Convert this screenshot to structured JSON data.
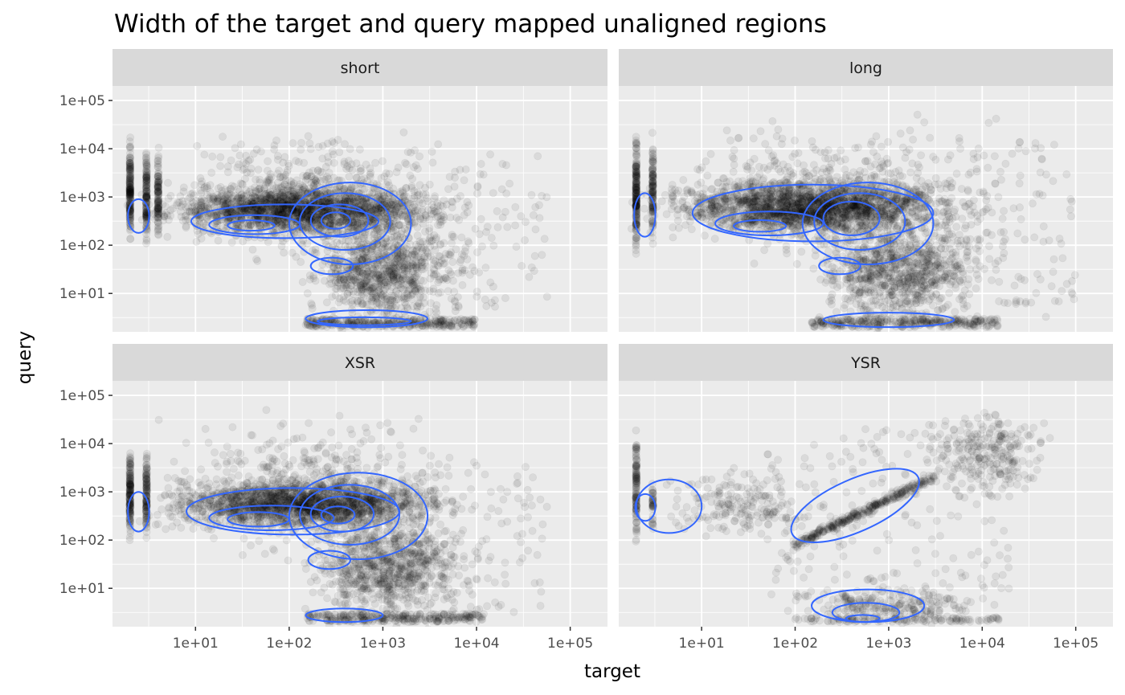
{
  "chart_data": {
    "type": "scatter",
    "title": "Width of the target and query mapped unaligned regions",
    "xlabel": "target",
    "ylabel": "query",
    "x_scale": "log10",
    "y_scale": "log10",
    "xlim": [
      1.3,
      250000
    ],
    "ylim": [
      1.6,
      200000
    ],
    "x_ticks": [
      10,
      100,
      1000,
      10000,
      100000
    ],
    "x_tick_labels": [
      "1e+01",
      "1e+02",
      "1e+03",
      "1e+04",
      "1e+05"
    ],
    "y_ticks": [
      10,
      100,
      1000,
      10000,
      100000
    ],
    "y_tick_labels": [
      "1e+01",
      "1e+02",
      "1e+03",
      "1e+04",
      "1e+05"
    ],
    "grid": true,
    "point_color": "#000000",
    "point_alpha": 0.07,
    "density_contour_color": "#3366FF",
    "panel_background": "#EBEBEB",
    "strip_background": "#D9D9D9",
    "layout": {
      "rows": 2,
      "cols": 2
    },
    "panels": [
      {
        "label": "short",
        "point_clusters": [
          {
            "x": [
              2,
              2
            ],
            "y": [
              80,
              20000
            ],
            "n": 180,
            "kind": "column"
          },
          {
            "x": [
              3,
              3
            ],
            "y": [
              80,
              15000
            ],
            "n": 140,
            "kind": "column"
          },
          {
            "x": [
              4,
              4
            ],
            "y": [
              80,
              12000
            ],
            "n": 110,
            "kind": "column"
          },
          {
            "x": [
              3,
              6000
            ],
            "y": [
              150,
              2000
            ],
            "n": 1800,
            "kind": "cloud"
          },
          {
            "x": [
              5,
              8000
            ],
            "y": [
              40,
              30000
            ],
            "n": 500,
            "kind": "cloud"
          },
          {
            "x": [
              150,
              8000
            ],
            "y": [
              2,
              400
            ],
            "n": 900,
            "kind": "cloud"
          },
          {
            "x": [
              150,
              10000
            ],
            "y": [
              2,
              3
            ],
            "n": 300,
            "kind": "row"
          },
          {
            "x": [
              5000,
              60000
            ],
            "y": [
              5,
              8000
            ],
            "n": 80,
            "kind": "sparse"
          }
        ],
        "contours": [
          {
            "center": [
              2.5,
              380
            ],
            "rx": [
              1.9,
              3.2
            ],
            "ry": [
              180,
              900
            ]
          },
          {
            "center": [
              30,
              250
            ],
            "rx": [
              9,
              900
            ],
            "ry": [
              140,
              700
            ]
          },
          {
            "center": [
              35,
              250
            ],
            "rx": [
              14,
              130
            ],
            "ry": [
              170,
              420
            ]
          },
          {
            "center": [
              38,
              250
            ],
            "rx": [
              22,
              70
            ],
            "ry": [
              200,
              330
            ]
          },
          {
            "center": [
              300,
              300
            ],
            "rx": [
              100,
              2000
            ],
            "ry": [
              40,
              2000
            ]
          },
          {
            "center": [
              300,
              320
            ],
            "rx": [
              130,
              1200
            ],
            "ry": [
              80,
              1200
            ]
          },
          {
            "center": [
              300,
              320
            ],
            "rx": [
              170,
              700
            ],
            "ry": [
              150,
              700
            ]
          },
          {
            "center": [
              300,
              320
            ],
            "rx": [
              220,
              450
            ],
            "ry": [
              220,
              480
            ]
          },
          {
            "center": [
              270,
              35
            ],
            "rx": [
              170,
              480
            ],
            "ry": [
              25,
              55
            ]
          },
          {
            "center": [
              400,
              2.8
            ],
            "rx": [
              150,
              3000
            ],
            "ry": [
              2.0,
              4.5
            ]
          },
          {
            "center": [
              400,
              2.6
            ],
            "rx": [
              200,
              2000
            ],
            "ry": [
              2.2,
              3.2
            ]
          }
        ]
      },
      {
        "label": "long",
        "point_clusters": [
          {
            "x": [
              2,
              2
            ],
            "y": [
              50,
              30000
            ],
            "n": 200,
            "kind": "column"
          },
          {
            "x": [
              3,
              3
            ],
            "y": [
              80,
              20000
            ],
            "n": 120,
            "kind": "column"
          },
          {
            "x": [
              3,
              8000
            ],
            "y": [
              150,
              2500
            ],
            "n": 1900,
            "kind": "cloud"
          },
          {
            "x": [
              5,
              12000
            ],
            "y": [
              40,
              40000
            ],
            "n": 550,
            "kind": "cloud"
          },
          {
            "x": [
              150,
              12000
            ],
            "y": [
              2,
              400
            ],
            "n": 900,
            "kind": "cloud"
          },
          {
            "x": [
              150,
              15000
            ],
            "y": [
              2,
              3
            ],
            "n": 300,
            "kind": "row"
          },
          {
            "x": [
              8000,
              100000
            ],
            "y": [
              3,
              15000
            ],
            "n": 100,
            "kind": "sparse"
          }
        ],
        "contours": [
          {
            "center": [
              2.5,
              450
            ],
            "rx": [
              1.9,
              3.2
            ],
            "ry": [
              150,
              1200
            ]
          },
          {
            "center": [
              35,
              250
            ],
            "rx": [
              8,
              3000
            ],
            "ry": [
              120,
              1800
            ]
          },
          {
            "center": [
              35,
              250
            ],
            "rx": [
              14,
              200
            ],
            "ry": [
              160,
              500
            ]
          },
          {
            "center": [
              38,
              250
            ],
            "rx": [
              22,
              80
            ],
            "ry": [
              190,
              330
            ]
          },
          {
            "center": [
              400,
              350
            ],
            "rx": [
              120,
              3000
            ],
            "ry": [
              40,
              2000
            ]
          },
          {
            "center": [
              400,
              350
            ],
            "rx": [
              160,
              1500
            ],
            "ry": [
              80,
              1200
            ]
          },
          {
            "center": [
              400,
              380
            ],
            "rx": [
              200,
              800
            ],
            "ry": [
              160,
              800
            ]
          },
          {
            "center": [
              300,
              35
            ],
            "rx": [
              180,
              500
            ],
            "ry": [
              25,
              55
            ]
          },
          {
            "center": [
              500,
              2.7
            ],
            "rx": [
              200,
              5000
            ],
            "ry": [
              2.0,
              4.0
            ]
          }
        ]
      },
      {
        "label": "XSR",
        "point_clusters": [
          {
            "x": [
              2,
              2
            ],
            "y": [
              80,
              10000
            ],
            "n": 160,
            "kind": "column"
          },
          {
            "x": [
              3,
              3
            ],
            "y": [
              80,
              8000
            ],
            "n": 120,
            "kind": "column"
          },
          {
            "x": [
              3,
              6000
            ],
            "y": [
              150,
              2000
            ],
            "n": 1700,
            "kind": "cloud"
          },
          {
            "x": [
              5,
              9000
            ],
            "y": [
              40,
              40000
            ],
            "n": 500,
            "kind": "cloud"
          },
          {
            "x": [
              150,
              9000
            ],
            "y": [
              2,
              400
            ],
            "n": 850,
            "kind": "cloud"
          },
          {
            "x": [
              150,
              12000
            ],
            "y": [
              2,
              3
            ],
            "n": 280,
            "kind": "row"
          },
          {
            "x": [
              5000,
              60000
            ],
            "y": [
              3,
              5000
            ],
            "n": 70,
            "kind": "sparse"
          }
        ],
        "contours": [
          {
            "center": [
              2.5,
              400
            ],
            "rx": [
              1.9,
              3.2
            ],
            "ry": [
              150,
              1000
            ]
          },
          {
            "center": [
              40,
              270
            ],
            "rx": [
              8,
              1500
            ],
            "ry": [
              130,
              1200
            ]
          },
          {
            "center": [
              40,
              280
            ],
            "rx": [
              14,
              300
            ],
            "ry": [
              160,
              520
            ]
          },
          {
            "center": [
              40,
              280
            ],
            "rx": [
              22,
              100
            ],
            "ry": [
              190,
              380
            ]
          },
          {
            "center": [
              300,
              300
            ],
            "rx": [
              100,
              3000
            ],
            "ry": [
              40,
              2500
            ]
          },
          {
            "center": [
              300,
              320
            ],
            "rx": [
              130,
              1500
            ],
            "ry": [
              80,
              1400
            ]
          },
          {
            "center": [
              300,
              320
            ],
            "rx": [
              170,
              800
            ],
            "ry": [
              150,
              800
            ]
          },
          {
            "center": [
              300,
              320
            ],
            "rx": [
              220,
              500
            ],
            "ry": [
              220,
              500
            ]
          },
          {
            "center": [
              260,
              40
            ],
            "rx": [
              160,
              450
            ],
            "ry": [
              25,
              60
            ]
          },
          {
            "center": [
              300,
              2.8
            ],
            "rx": [
              150,
              1000
            ],
            "ry": [
              2.0,
              3.8
            ]
          }
        ]
      },
      {
        "label": "YSR",
        "point_clusters": [
          {
            "x": [
              2,
              2
            ],
            "y": [
              60,
              30000
            ],
            "n": 120,
            "kind": "column"
          },
          {
            "x": [
              3,
              3
            ],
            "y": [
              100,
              3000
            ],
            "n": 40,
            "kind": "column"
          },
          {
            "x": [
              4,
              200
            ],
            "y": [
              100,
              3000
            ],
            "n": 200,
            "kind": "cloud"
          },
          {
            "x": [
              100,
              3000
            ],
            "y": [
              80,
              2000
            ],
            "n": 300,
            "kind": "diagonal"
          },
          {
            "x": [
              100,
              12000
            ],
            "y": [
              2,
              10
            ],
            "n": 220,
            "kind": "cloud"
          },
          {
            "x": [
              100,
              15000
            ],
            "y": [
              2,
              2.5
            ],
            "n": 120,
            "kind": "row"
          },
          {
            "x": [
              2000,
              60000
            ],
            "y": [
              800,
              50000
            ],
            "n": 260,
            "kind": "cloud"
          },
          {
            "x": [
              50,
              20000
            ],
            "y": [
              5,
              20000
            ],
            "n": 200,
            "kind": "sparse"
          }
        ],
        "contours": [
          {
            "center": [
              3,
              500
            ],
            "rx": [
              2.0,
              10
            ],
            "ry": [
              140,
              1800
            ]
          },
          {
            "center": [
              2.3,
              500
            ],
            "rx": [
              1.95,
              3.2
            ],
            "ry": [
              250,
              900
            ]
          },
          {
            "center": [
              600,
              500
            ],
            "rx": [
              80,
              2400
            ],
            "ry": [
              150,
              1800
            ],
            "tilt": true
          },
          {
            "center": [
              600,
              3
            ],
            "rx": [
              150,
              2400
            ],
            "ry": [
              2.0,
              9.5
            ]
          },
          {
            "center": [
              500,
              2.6
            ],
            "rx": [
              250,
              1300
            ],
            "ry": [
              2.0,
              5.0
            ]
          },
          {
            "center": [
              500,
              2.3
            ],
            "rx": [
              350,
              800
            ],
            "ry": [
              2.0,
              2.8
            ]
          }
        ]
      }
    ]
  }
}
